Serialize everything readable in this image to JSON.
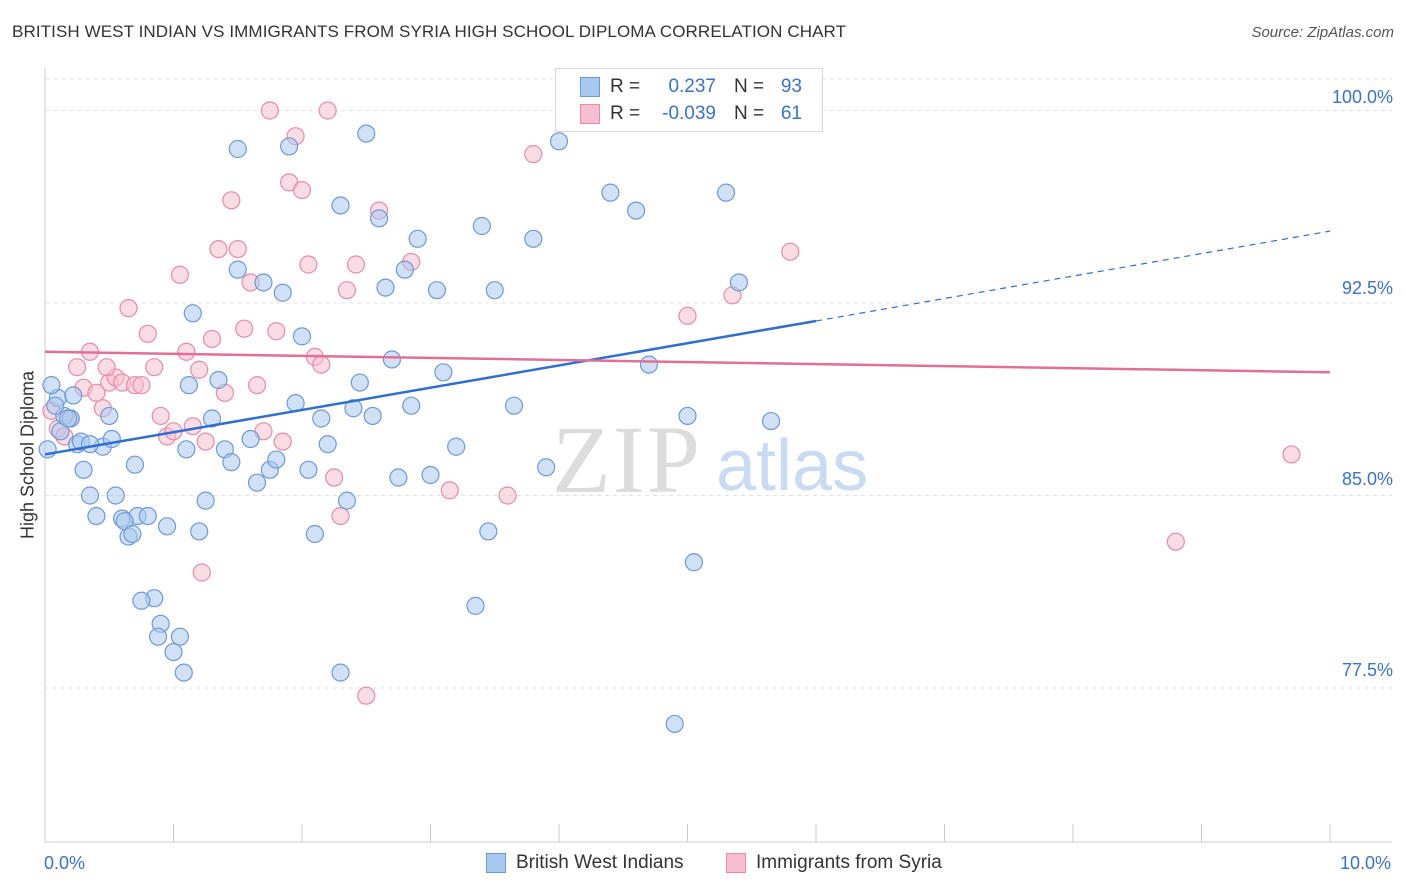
{
  "title": "BRITISH WEST INDIAN VS IMMIGRANTS FROM SYRIA HIGH SCHOOL DIPLOMA CORRELATION CHART",
  "source": "Source: ZipAtlas.com",
  "watermark": {
    "zip": "ZIP",
    "atlas": "atlas"
  },
  "legend": {
    "r_label": "R =",
    "n_label": "N =",
    "series": [
      {
        "r": "0.237",
        "n": "93"
      },
      {
        "r": "-0.039",
        "n": "61"
      }
    ]
  },
  "colors": {
    "blue_fill": "#a9c8ef",
    "blue_stroke": "#6d9ad9",
    "blue_line": "#2f6fcf",
    "pink_fill": "#f6bfd0",
    "pink_stroke": "#e88ba8",
    "pink_line": "#e07098",
    "grid": "#e3e3e3",
    "axis_text": "#3b73c4"
  },
  "chart_data": {
    "type": "scatter",
    "title": "BRITISH WEST INDIAN VS IMMIGRANTS FROM SYRIA HIGH SCHOOL DIPLOMA CORRELATION CHART",
    "xlabel": "",
    "ylabel": "High School Diploma",
    "xlim": [
      0,
      10
    ],
    "ylim": [
      71.5,
      101.5
    ],
    "x_tick_labels": [
      "0.0%",
      "10.0%"
    ],
    "y_ticks": [
      77.5,
      85.0,
      92.5,
      100.0
    ],
    "y_tick_labels": [
      "77.5%",
      "85.0%",
      "92.5%",
      "100.0%"
    ],
    "grid": true,
    "legend_position": "bottom",
    "series": [
      {
        "name": "British West Indians",
        "r": 0.237,
        "n": 93,
        "trend": {
          "x0": 0.0,
          "y0": 86.6,
          "x1": 6.0,
          "y1": 91.8,
          "dashed_to_x": 10.0,
          "dashed_to_y": 95.3
        },
        "points": [
          [
            0.1,
            88.8
          ],
          [
            0.15,
            88.1
          ],
          [
            0.2,
            88.0
          ],
          [
            0.25,
            87.0
          ],
          [
            0.3,
            86.0
          ],
          [
            0.35,
            85.0
          ],
          [
            0.4,
            84.2
          ],
          [
            0.45,
            86.9
          ],
          [
            0.5,
            88.1
          ],
          [
            0.55,
            85.0
          ],
          [
            0.6,
            84.1
          ],
          [
            0.65,
            83.4
          ],
          [
            0.7,
            86.2
          ],
          [
            0.72,
            84.2
          ],
          [
            0.8,
            84.2
          ],
          [
            0.85,
            81.0
          ],
          [
            0.9,
            80.0
          ],
          [
            0.95,
            83.8
          ],
          [
            1.0,
            78.9
          ],
          [
            1.05,
            79.5
          ],
          [
            1.1,
            86.8
          ],
          [
            1.12,
            89.3
          ],
          [
            1.15,
            92.1
          ],
          [
            1.2,
            83.6
          ],
          [
            1.25,
            84.8
          ],
          [
            1.3,
            88.0
          ],
          [
            1.35,
            89.5
          ],
          [
            1.4,
            86.8
          ],
          [
            1.5,
            98.5
          ],
          [
            1.5,
            93.8
          ],
          [
            1.6,
            87.2
          ],
          [
            1.65,
            85.5
          ],
          [
            1.7,
            93.3
          ],
          [
            1.75,
            86.0
          ],
          [
            1.8,
            86.4
          ],
          [
            1.85,
            92.9
          ],
          [
            1.9,
            98.6
          ],
          [
            1.95,
            88.6
          ],
          [
            2.0,
            91.2
          ],
          [
            2.05,
            86.0
          ],
          [
            2.1,
            83.5
          ],
          [
            2.15,
            88.0
          ],
          [
            2.2,
            87.0
          ],
          [
            2.3,
            96.3
          ],
          [
            2.35,
            84.8
          ],
          [
            2.4,
            88.4
          ],
          [
            2.45,
            89.4
          ],
          [
            2.5,
            99.1
          ],
          [
            2.6,
            95.8
          ],
          [
            2.65,
            93.1
          ],
          [
            2.7,
            90.3
          ],
          [
            2.75,
            85.7
          ],
          [
            2.8,
            93.8
          ],
          [
            2.85,
            88.5
          ],
          [
            2.9,
            95.0
          ],
          [
            3.0,
            85.8
          ],
          [
            3.05,
            93.0
          ],
          [
            3.1,
            89.8
          ],
          [
            3.2,
            86.9
          ],
          [
            3.35,
            80.7
          ],
          [
            3.4,
            95.5
          ],
          [
            3.45,
            83.6
          ],
          [
            3.5,
            93.0
          ],
          [
            3.65,
            88.5
          ],
          [
            3.8,
            95.0
          ],
          [
            3.9,
            86.1
          ],
          [
            4.0,
            98.8
          ],
          [
            4.4,
            96.8
          ],
          [
            4.6,
            96.1
          ],
          [
            4.7,
            90.1
          ],
          [
            4.9,
            76.1
          ],
          [
            5.0,
            88.1
          ],
          [
            5.05,
            82.4
          ],
          [
            5.3,
            96.8
          ],
          [
            5.4,
            93.3
          ],
          [
            5.65,
            87.9
          ],
          [
            0.05,
            89.3
          ],
          [
            0.08,
            88.5
          ],
          [
            0.12,
            87.5
          ],
          [
            0.18,
            88.0
          ],
          [
            0.28,
            87.1
          ],
          [
            0.35,
            87.0
          ],
          [
            0.52,
            87.2
          ],
          [
            0.62,
            84.0
          ],
          [
            0.68,
            83.5
          ],
          [
            0.75,
            80.9
          ],
          [
            0.88,
            79.5
          ],
          [
            1.08,
            78.1
          ],
          [
            1.45,
            86.3
          ],
          [
            2.3,
            78.1
          ],
          [
            2.55,
            88.1
          ],
          [
            0.22,
            88.9
          ],
          [
            0.02,
            86.8
          ]
        ]
      },
      {
        "name": "Immigrants from Syria",
        "r": -0.039,
        "n": 61,
        "trend": {
          "x0": 0.0,
          "y0": 90.6,
          "x1": 10.0,
          "y1": 89.8
        },
        "points": [
          [
            0.05,
            88.3
          ],
          [
            0.1,
            87.6
          ],
          [
            0.15,
            87.3
          ],
          [
            0.2,
            88.0
          ],
          [
            0.25,
            90.0
          ],
          [
            0.3,
            89.2
          ],
          [
            0.35,
            90.6
          ],
          [
            0.4,
            89.0
          ],
          [
            0.45,
            88.4
          ],
          [
            0.5,
            89.4
          ],
          [
            0.55,
            89.6
          ],
          [
            0.6,
            89.4
          ],
          [
            0.65,
            92.3
          ],
          [
            0.7,
            89.3
          ],
          [
            0.75,
            89.3
          ],
          [
            0.8,
            91.3
          ],
          [
            0.85,
            90.0
          ],
          [
            0.9,
            88.1
          ],
          [
            0.95,
            87.3
          ],
          [
            1.0,
            87.5
          ],
          [
            1.05,
            93.6
          ],
          [
            1.1,
            90.6
          ],
          [
            1.15,
            87.7
          ],
          [
            1.2,
            89.9
          ],
          [
            1.25,
            87.1
          ],
          [
            1.3,
            91.1
          ],
          [
            1.35,
            94.6
          ],
          [
            1.4,
            89.0
          ],
          [
            1.45,
            96.5
          ],
          [
            1.5,
            94.6
          ],
          [
            1.55,
            91.5
          ],
          [
            1.6,
            93.3
          ],
          [
            1.65,
            89.3
          ],
          [
            1.7,
            87.5
          ],
          [
            1.75,
            100.0
          ],
          [
            1.8,
            91.4
          ],
          [
            1.85,
            87.1
          ],
          [
            1.9,
            97.2
          ],
          [
            1.95,
            99.0
          ],
          [
            2.0,
            96.9
          ],
          [
            2.05,
            94.0
          ],
          [
            2.1,
            90.4
          ],
          [
            2.15,
            90.1
          ],
          [
            2.2,
            100.0
          ],
          [
            2.25,
            85.7
          ],
          [
            2.3,
            84.2
          ],
          [
            2.35,
            93.0
          ],
          [
            2.5,
            77.2
          ],
          [
            2.6,
            96.1
          ],
          [
            2.85,
            94.1
          ],
          [
            3.15,
            85.2
          ],
          [
            3.6,
            85.0
          ],
          [
            3.8,
            98.3
          ],
          [
            5.0,
            92.0
          ],
          [
            5.35,
            92.8
          ],
          [
            5.8,
            94.5
          ],
          [
            8.8,
            83.2
          ],
          [
            9.7,
            86.6
          ],
          [
            1.22,
            82.0
          ],
          [
            0.48,
            90.0
          ],
          [
            2.42,
            94.0
          ]
        ]
      }
    ]
  },
  "x_axis": {
    "left_label": "0.0%",
    "right_label": "10.0%"
  },
  "y_axis": {
    "label": "High School Diploma",
    "ticks": [
      "100.0%",
      "92.5%",
      "85.0%",
      "77.5%"
    ]
  }
}
